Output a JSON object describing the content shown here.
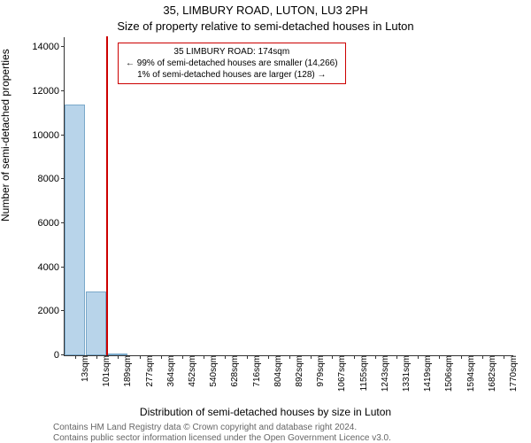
{
  "title_line1": "35, LIMBURY ROAD, LUTON, LU3 2PH",
  "title_line2": "Size of property relative to semi-detached houses in Luton",
  "ylabel": "Number of semi-detached properties",
  "xlabel": "Distribution of semi-detached houses by size in Luton",
  "footnote1": "Contains HM Land Registry data © Crown copyright and database right 2024.",
  "footnote2": "Contains public sector information licensed under the Open Government Licence v3.0.",
  "chart": {
    "type": "bar",
    "ylim": [
      0,
      14500
    ],
    "yticks": [
      0,
      2000,
      4000,
      6000,
      8000,
      10000,
      12000,
      14000
    ],
    "bar_fill": "#b8d4ea",
    "bar_stroke": "#7aa8c9",
    "marker_color": "#cc0000",
    "background": "#ffffff",
    "categories": [
      "13sqm",
      "101sqm",
      "189sqm",
      "277sqm",
      "364sqm",
      "452sqm",
      "540sqm",
      "628sqm",
      "716sqm",
      "804sqm",
      "892sqm",
      "979sqm",
      "1067sqm",
      "1155sqm",
      "1243sqm",
      "1331sqm",
      "1419sqm",
      "1506sqm",
      "1594sqm",
      "1682sqm",
      "1770sqm"
    ],
    "values": [
      11400,
      2900,
      80,
      10,
      5,
      0,
      0,
      0,
      0,
      0,
      0,
      0,
      0,
      0,
      0,
      0,
      0,
      0,
      0,
      0,
      0
    ],
    "marker_x_value": 174,
    "x_min": 13,
    "x_max": 1770
  },
  "annotation": {
    "line1": "35 LIMBURY ROAD: 174sqm",
    "line2": "← 99% of semi-detached houses are smaller (14,266)",
    "line3": "1% of semi-detached houses are larger (128) →",
    "border_color": "#cc0000"
  }
}
